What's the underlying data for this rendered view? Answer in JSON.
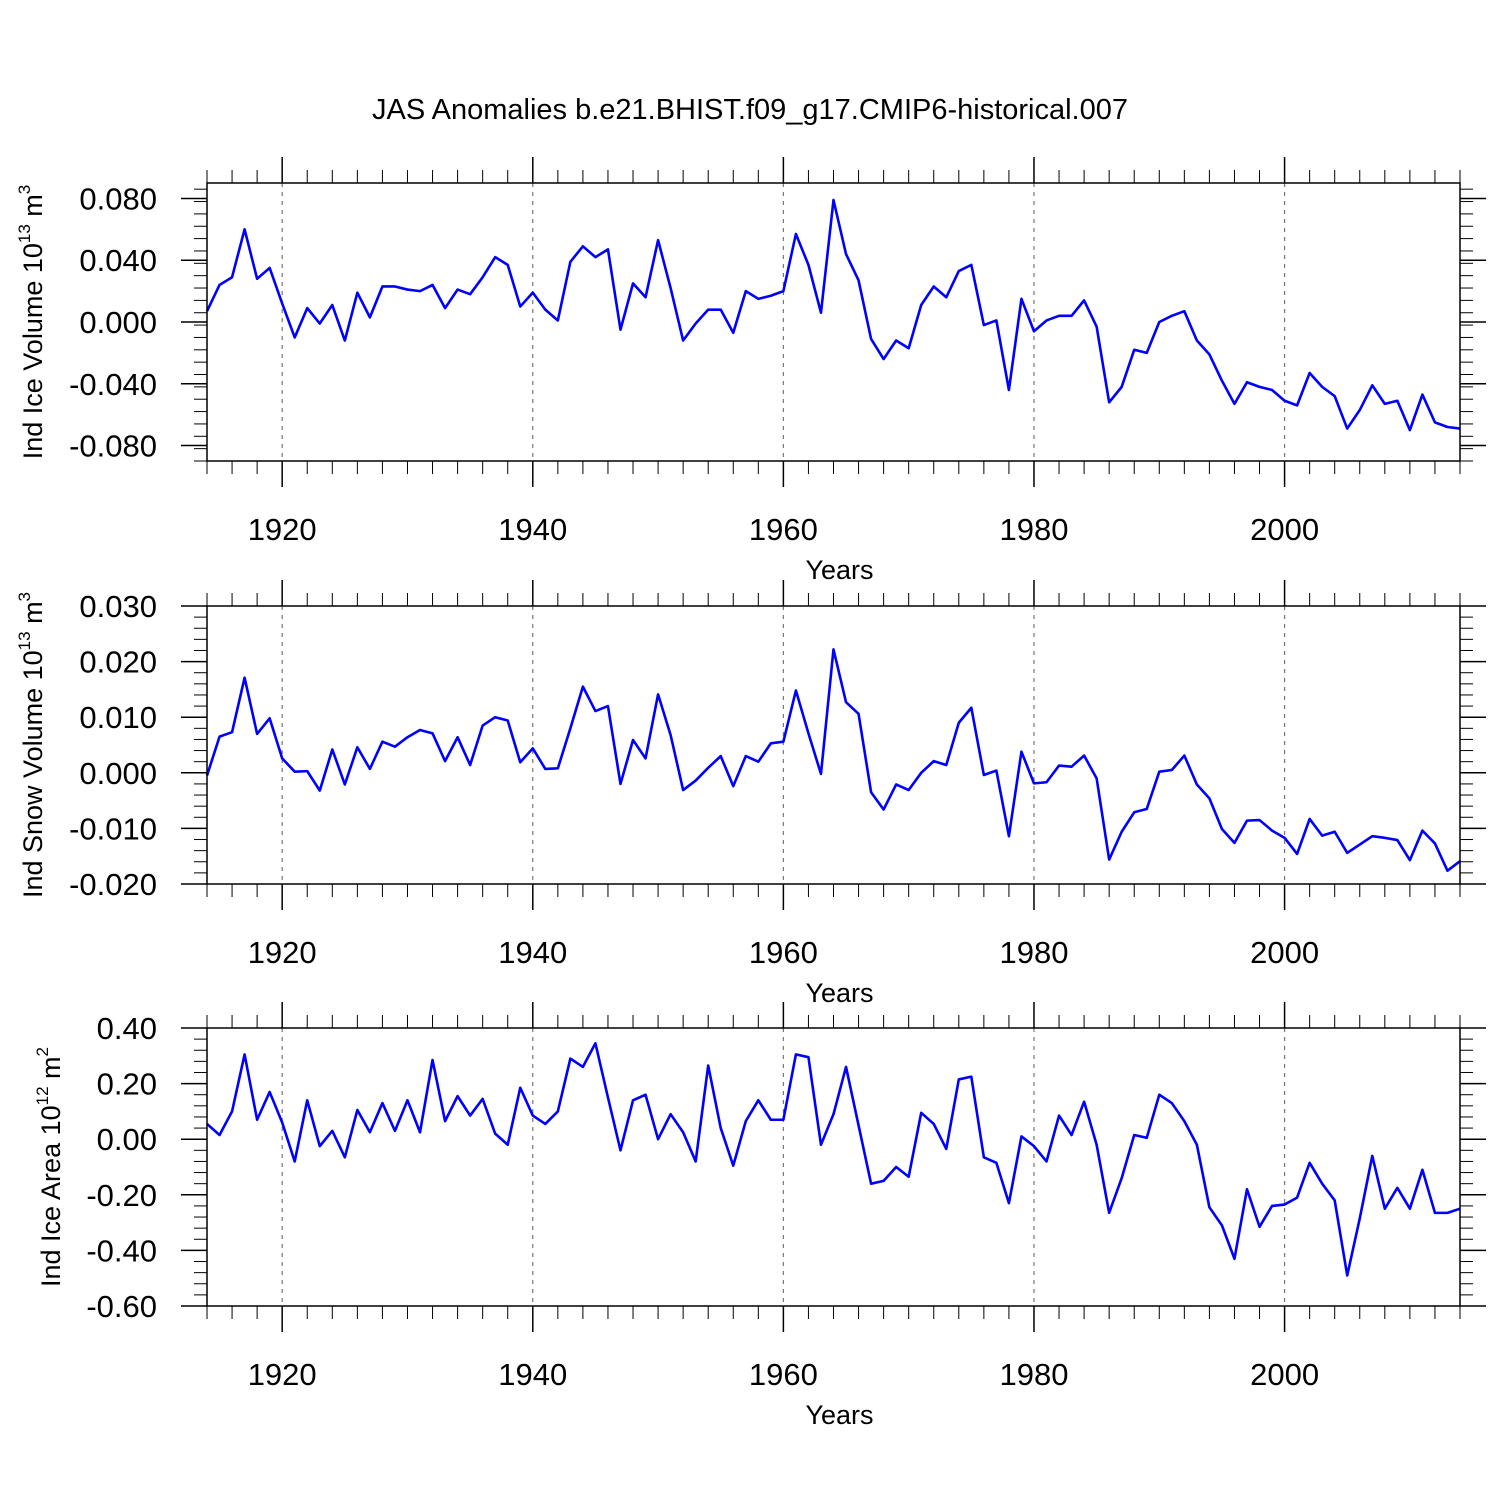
{
  "title": "JAS Anomalies b.e21.BHIST.f09_g17.CMIP6-historical.007",
  "colors": {
    "line": "#0000ff",
    "grid": "#777777",
    "axis": "#000000",
    "background": "#ffffff"
  },
  "chart_data": [
    {
      "type": "line",
      "ylabel_main": "Ind Ice Volume 10",
      "ylabel_exp": "13",
      "ylabel_unit": " m",
      "ylabel_unit_exp": "3",
      "xlabel": "Years",
      "xlim": [
        1914,
        2014
      ],
      "ylim": [
        -0.09,
        0.09
      ],
      "yticks": [
        -0.08,
        -0.04,
        0.0,
        0.04,
        0.08
      ],
      "ytick_labels": [
        "-0.080",
        "-0.040",
        "0.000",
        "0.040",
        "0.080"
      ],
      "xticks": [
        1920,
        1940,
        1960,
        1980,
        2000
      ],
      "xtick_labels": [
        "1920",
        "1940",
        "1960",
        "1980",
        "2000"
      ],
      "x_start": 1914,
      "series": [
        {
          "name": "Ind Ice Volume",
          "values": [
            0.007,
            0.024,
            0.029,
            0.06,
            0.028,
            0.035,
            0.012,
            -0.01,
            0.009,
            -0.001,
            0.011,
            -0.012,
            0.019,
            0.003,
            0.023,
            0.023,
            0.021,
            0.02,
            0.024,
            0.009,
            0.021,
            0.018,
            0.029,
            0.042,
            0.037,
            0.01,
            0.019,
            0.008,
            0.001,
            0.039,
            0.049,
            0.042,
            0.047,
            -0.005,
            0.025,
            0.016,
            0.053,
            0.022,
            -0.012,
            -0.001,
            0.008,
            0.008,
            -0.007,
            0.02,
            0.015,
            0.017,
            0.02,
            0.057,
            0.037,
            0.006,
            0.079,
            0.044,
            0.027,
            -0.011,
            -0.024,
            -0.012,
            -0.017,
            0.011,
            0.023,
            0.016,
            0.033,
            0.037,
            -0.002,
            0.001,
            -0.044,
            0.015,
            -0.006,
            0.001,
            0.004,
            0.004,
            0.014,
            -0.003,
            -0.052,
            -0.042,
            -0.018,
            -0.02,
            0.0,
            0.004,
            0.007,
            -0.012,
            -0.021,
            -0.038,
            -0.053,
            -0.039,
            -0.042,
            -0.044,
            -0.051,
            -0.054,
            -0.033,
            -0.042,
            -0.048,
            -0.069,
            -0.057,
            -0.041,
            -0.053,
            -0.051,
            -0.07,
            -0.047,
            -0.065,
            -0.068,
            -0.069
          ]
        }
      ]
    },
    {
      "type": "line",
      "ylabel_main": "Ind Snow Volume 10",
      "ylabel_exp": "13",
      "ylabel_unit": " m",
      "ylabel_unit_exp": "3",
      "xlabel": "Years",
      "xlim": [
        1914,
        2014
      ],
      "ylim": [
        -0.02,
        0.03
      ],
      "yticks": [
        -0.02,
        -0.01,
        0.0,
        0.01,
        0.02,
        0.03
      ],
      "ytick_labels": [
        "-0.020",
        "-0.010",
        "0.000",
        "0.010",
        "0.020",
        "0.030"
      ],
      "xticks": [
        1920,
        1940,
        1960,
        1980,
        2000
      ],
      "xtick_labels": [
        "1920",
        "1940",
        "1960",
        "1980",
        "2000"
      ],
      "x_start": 1914,
      "series": [
        {
          "name": "Ind Snow Volume",
          "values": [
            -0.0005,
            0.0065,
            0.0073,
            0.0171,
            0.007,
            0.0098,
            0.0026,
            0.0002,
            0.0003,
            -0.0032,
            0.0042,
            -0.0021,
            0.0046,
            0.0007,
            0.0056,
            0.0047,
            0.0064,
            0.0077,
            0.0071,
            0.0021,
            0.0064,
            0.0014,
            0.0085,
            0.01,
            0.0094,
            0.0019,
            0.0044,
            0.0007,
            0.0008,
            0.008,
            0.0155,
            0.0111,
            0.012,
            -0.002,
            0.0059,
            0.0026,
            0.0141,
            0.0068,
            -0.0031,
            -0.0014,
            0.0009,
            0.003,
            -0.0024,
            0.003,
            0.002,
            0.0053,
            0.0056,
            0.0148,
            0.0071,
            -0.0002,
            0.0222,
            0.0127,
            0.0106,
            -0.0035,
            -0.0066,
            -0.0021,
            -0.0031,
            0.0,
            0.0021,
            0.0014,
            0.009,
            0.0117,
            -0.0004,
            0.0004,
            -0.0114,
            0.0038,
            -0.0019,
            -0.0017,
            0.0013,
            0.0011,
            0.0031,
            -0.001,
            -0.0156,
            -0.0106,
            -0.0071,
            -0.0065,
            0.0002,
            0.0005,
            0.0031,
            -0.0021,
            -0.0046,
            -0.0101,
            -0.0126,
            -0.0086,
            -0.0085,
            -0.0104,
            -0.0117,
            -0.0146,
            -0.0083,
            -0.0113,
            -0.0106,
            -0.0144,
            -0.0129,
            -0.0114,
            -0.0117,
            -0.0121,
            -0.0157,
            -0.0104,
            -0.0127,
            -0.0176,
            -0.0159
          ]
        }
      ]
    },
    {
      "type": "line",
      "ylabel_main": "Ind Ice Area 10",
      "ylabel_exp": "12",
      "ylabel_unit": " m",
      "ylabel_unit_exp": "2",
      "xlabel": "Years",
      "xlim": [
        1914,
        2014
      ],
      "ylim": [
        -0.6,
        0.4
      ],
      "yticks": [
        -0.6,
        -0.4,
        -0.2,
        0.0,
        0.2,
        0.4
      ],
      "ytick_labels": [
        "-0.60",
        "-0.40",
        "-0.20",
        "0.00",
        "0.20",
        "0.40"
      ],
      "xticks": [
        1920,
        1940,
        1960,
        1980,
        2000
      ],
      "xtick_labels": [
        "1920",
        "1940",
        "1960",
        "1980",
        "2000"
      ],
      "x_start": 1914,
      "series": [
        {
          "name": "Ind Ice Area",
          "values": [
            0.055,
            0.015,
            0.1,
            0.305,
            0.07,
            0.17,
            0.06,
            -0.08,
            0.14,
            -0.025,
            0.03,
            -0.065,
            0.105,
            0.025,
            0.13,
            0.03,
            0.14,
            0.025,
            0.285,
            0.065,
            0.155,
            0.085,
            0.145,
            0.02,
            -0.02,
            0.185,
            0.085,
            0.055,
            0.1,
            0.29,
            0.26,
            0.345,
            0.15,
            -0.04,
            0.14,
            0.16,
            0.0,
            0.09,
            0.025,
            -0.08,
            0.265,
            0.04,
            -0.095,
            0.065,
            0.14,
            0.07,
            0.07,
            0.305,
            0.295,
            -0.02,
            0.09,
            0.26,
            0.05,
            -0.16,
            -0.15,
            -0.1,
            -0.135,
            0.095,
            0.055,
            -0.035,
            0.215,
            0.225,
            -0.065,
            -0.085,
            -0.23,
            0.01,
            -0.025,
            -0.08,
            0.085,
            0.015,
            0.135,
            -0.02,
            -0.265,
            -0.14,
            0.015,
            0.005,
            0.16,
            0.13,
            0.065,
            -0.02,
            -0.245,
            -0.31,
            -0.43,
            -0.18,
            -0.315,
            -0.24,
            -0.235,
            -0.21,
            -0.085,
            -0.16,
            -0.22,
            -0.49,
            -0.285,
            -0.06,
            -0.25,
            -0.175,
            -0.25,
            -0.11,
            -0.265,
            -0.265,
            -0.25
          ]
        }
      ]
    }
  ]
}
